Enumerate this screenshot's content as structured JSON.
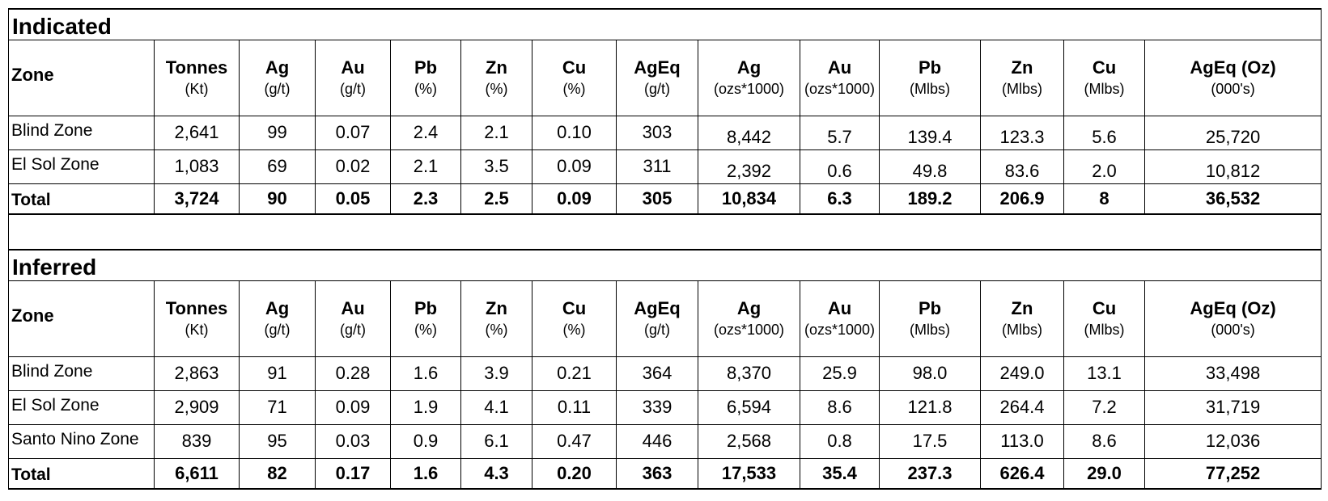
{
  "columns": [
    {
      "name": "Zone",
      "unit": ""
    },
    {
      "name": "Tonnes",
      "unit": "(Kt)"
    },
    {
      "name": "Ag",
      "unit": "(g/t)"
    },
    {
      "name": "Au",
      "unit": "(g/t)"
    },
    {
      "name": "Pb",
      "unit": "(%)"
    },
    {
      "name": "Zn",
      "unit": "(%)"
    },
    {
      "name": "Cu",
      "unit": "(%)"
    },
    {
      "name": "AgEq",
      "unit": "(g/t)"
    },
    {
      "name": "Ag",
      "unit": "(ozs*1000)"
    },
    {
      "name": "Au",
      "unit": "(ozs*1000)"
    },
    {
      "name": "Pb",
      "unit": "(Mlbs)"
    },
    {
      "name": "Zn",
      "unit": "(Mlbs)"
    },
    {
      "name": "Cu",
      "unit": "(Mlbs)"
    },
    {
      "name": "AgEq (Oz)",
      "unit": "(000's)"
    }
  ],
  "sections": [
    {
      "title": "Indicated",
      "rows": [
        [
          "Blind Zone",
          "2,641",
          "99",
          "0.07",
          "2.4",
          "2.1",
          "0.10",
          "303",
          "8,442",
          "5.7",
          "139.4",
          "123.3",
          "5.6",
          "25,720"
        ],
        [
          "El Sol Zone",
          "1,083",
          "69",
          "0.02",
          "2.1",
          "3.5",
          "0.09",
          "311",
          "2,392",
          "0.6",
          "49.8",
          "83.6",
          "2.0",
          "10,812"
        ]
      ],
      "total": [
        "Total",
        "3,724",
        "90",
        "0.05",
        "2.3",
        "2.5",
        "0.09",
        "305",
        "10,834",
        "6.3",
        "189.2",
        "206.9",
        "8",
        "36,532"
      ]
    },
    {
      "title": "Inferred",
      "rows": [
        [
          "Blind Zone",
          "2,863",
          "91",
          "0.28",
          "1.6",
          "3.9",
          "0.21",
          "364",
          "8,370",
          "25.9",
          "98.0",
          "249.0",
          "13.1",
          "33,498"
        ],
        [
          "El Sol Zone",
          "2,909",
          "71",
          "0.09",
          "1.9",
          "4.1",
          "0.11",
          "339",
          "6,594",
          "8.6",
          "121.8",
          "264.4",
          "7.2",
          "31,719"
        ],
        [
          "Santo Nino Zone",
          "839",
          "95",
          "0.03",
          "0.9",
          "6.1",
          "0.47",
          "446",
          "2,568",
          "0.8",
          "17.5",
          "113.0",
          "8.6",
          "12,036"
        ]
      ],
      "total": [
        "Total",
        "6,611",
        "82",
        "0.17",
        "1.6",
        "4.3",
        "0.20",
        "363",
        "17,533",
        "35.4",
        "237.3",
        "626.4",
        "29.0",
        "77,252"
      ]
    }
  ]
}
